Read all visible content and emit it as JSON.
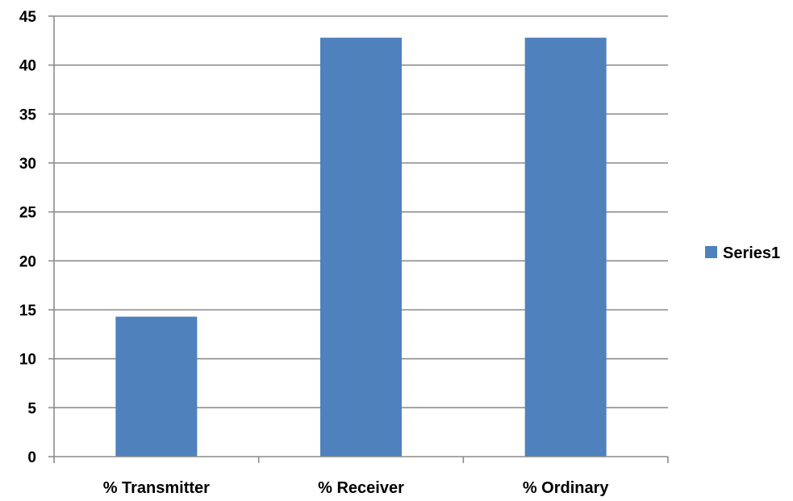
{
  "chart_data": {
    "type": "bar",
    "categories": [
      "% Transmitter",
      "% Receiver",
      "% Ordinary"
    ],
    "series": [
      {
        "name": "Series1",
        "values": [
          14.3,
          42.8,
          42.8
        ],
        "color": "#4F81BD"
      }
    ],
    "title": "",
    "xlabel": "",
    "ylabel": "",
    "ylim": [
      0,
      45
    ],
    "yticks": [
      0,
      5,
      10,
      15,
      20,
      25,
      30,
      35,
      40,
      45
    ],
    "grid": true,
    "legend": "right"
  },
  "colors": {
    "bar": "#4F81BD",
    "grid": "#8C8C8C",
    "axis": "#8C8C8C",
    "text": "#000000"
  }
}
